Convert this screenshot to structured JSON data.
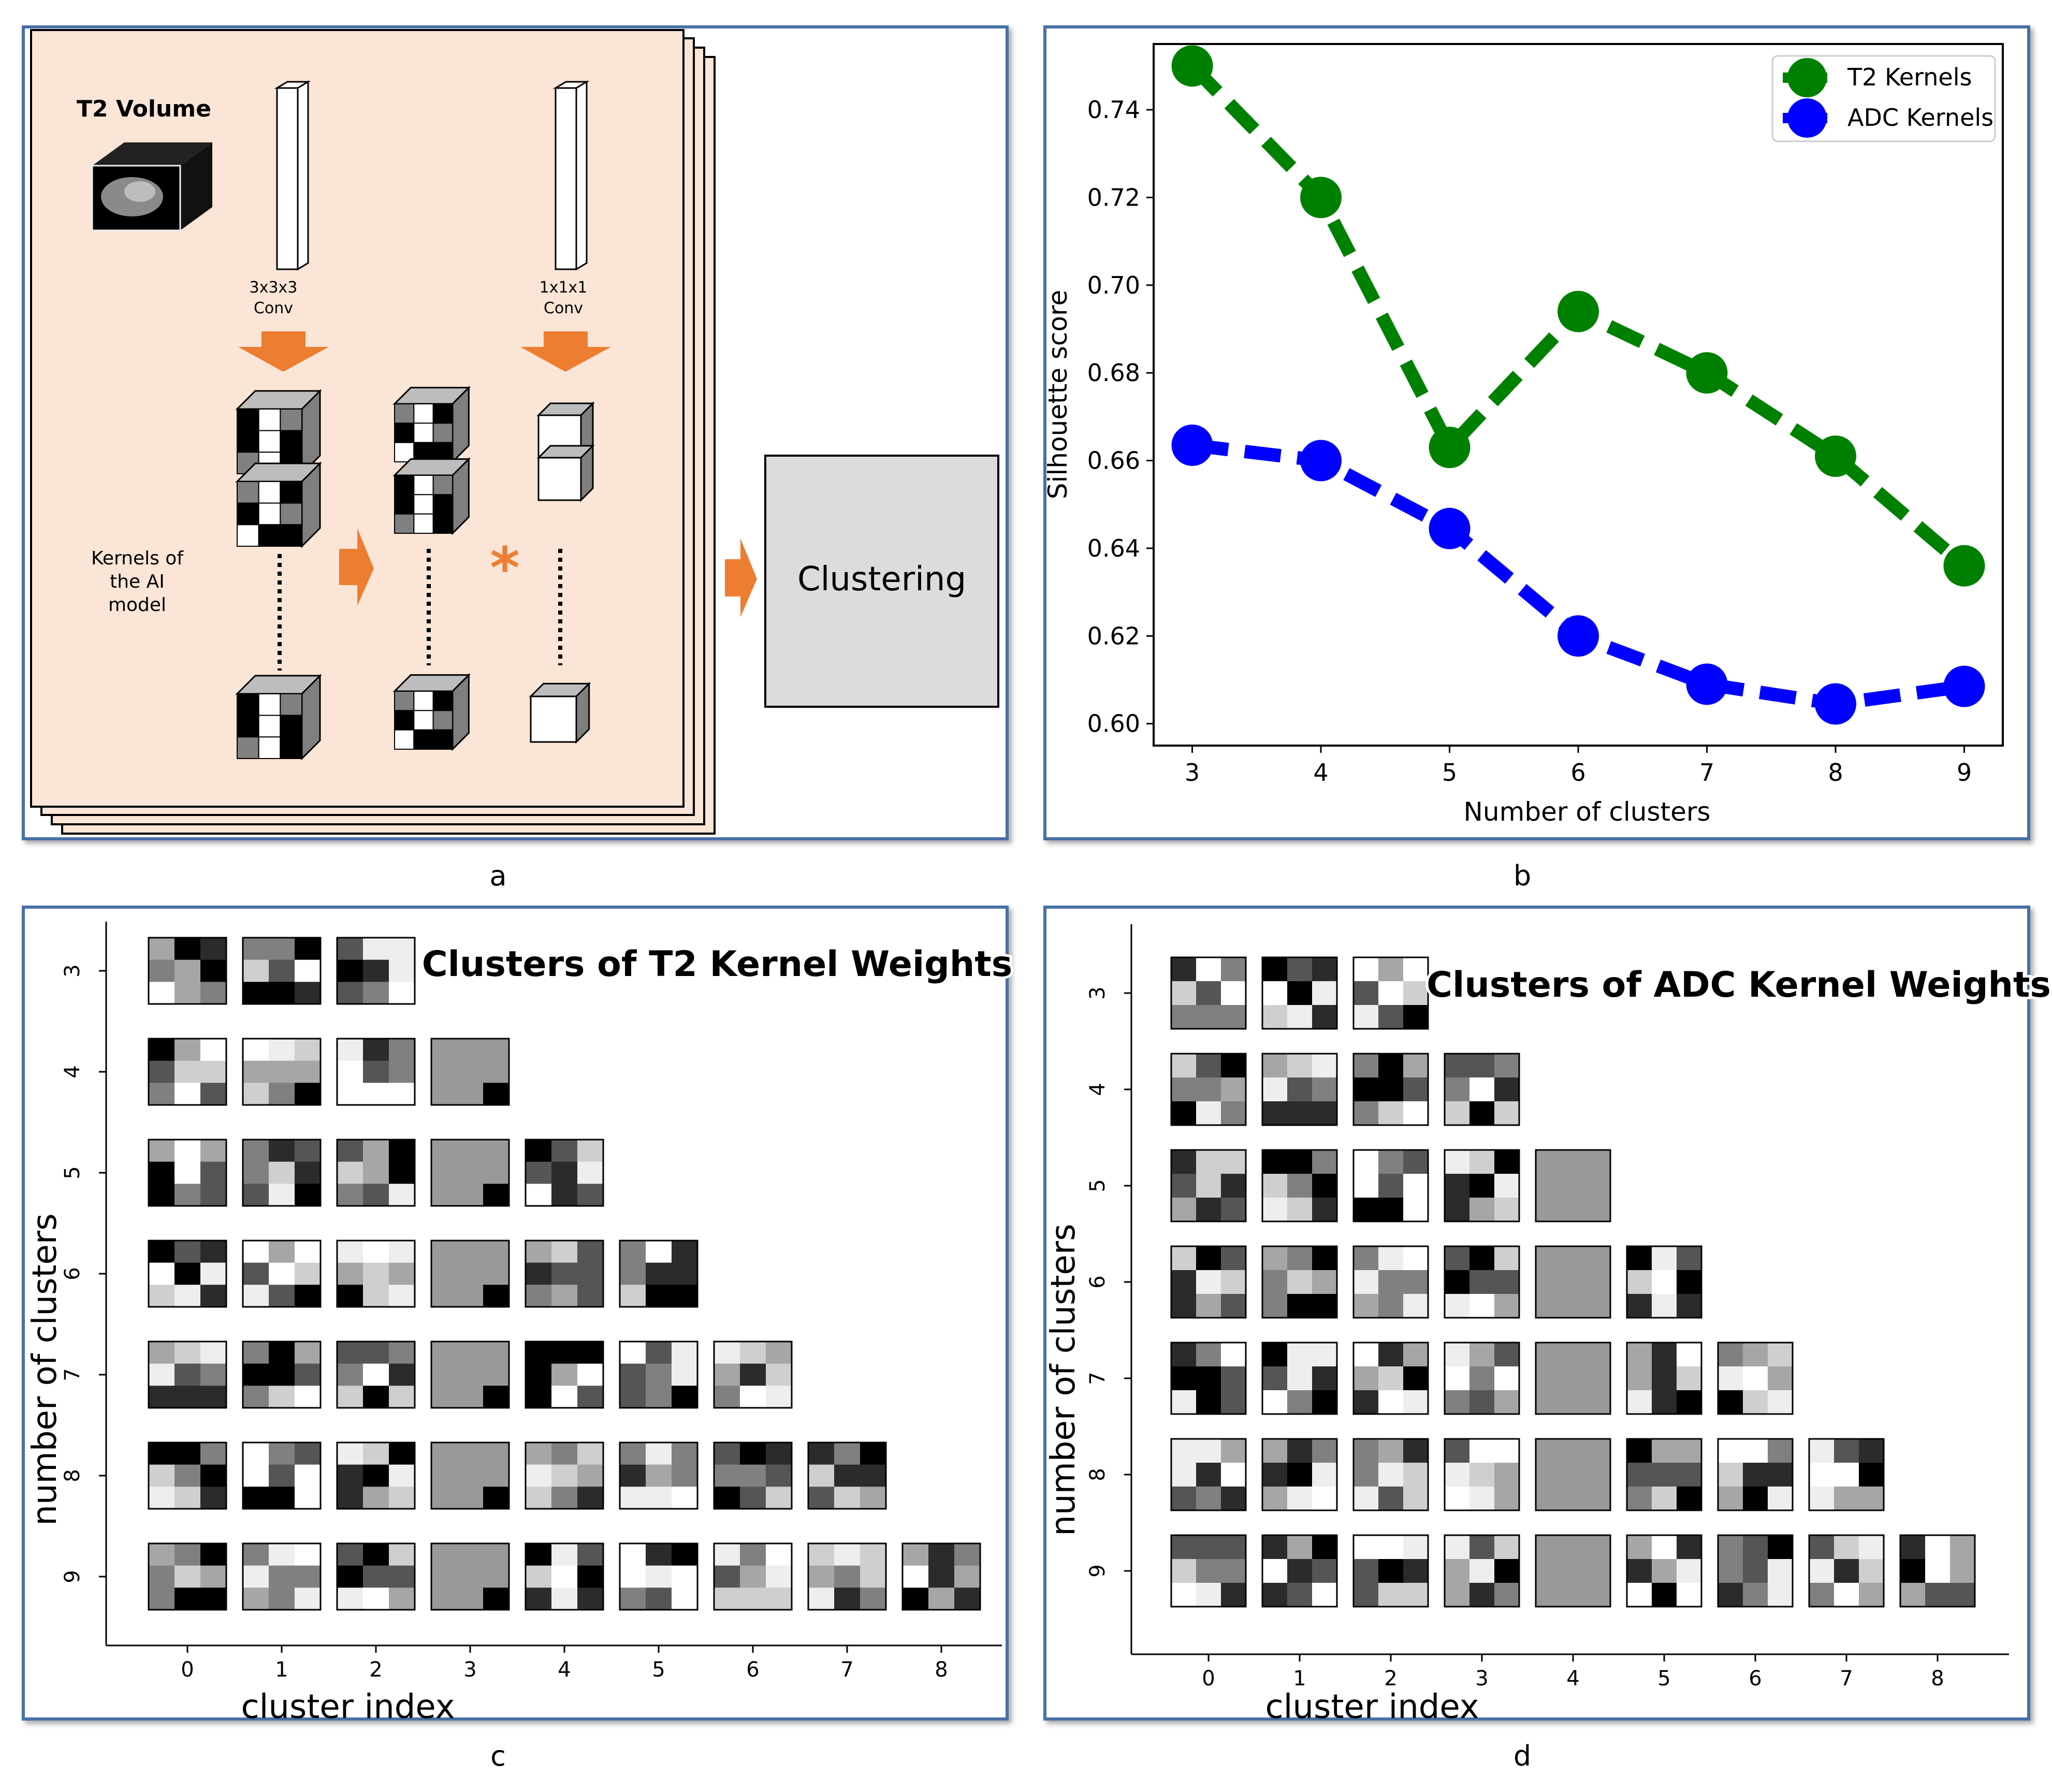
{
  "panels": {
    "a": {
      "caption": "a",
      "volume_label": "T2 Volume",
      "conv1_label": [
        "3x3x3",
        "Conv"
      ],
      "conv2_label": [
        "1x1x1",
        "Conv"
      ],
      "kernels_label": [
        "Kernels of",
        "the AI",
        "model"
      ],
      "operator": "*",
      "clustering_label": "Clustering",
      "colors": {
        "panel_fill": "#fbe5d6",
        "arrow": "#ed7d31",
        "box_fill": "#dcdcdc",
        "frame": "#4a6fa5"
      }
    },
    "b": {
      "caption": "b",
      "chart_data": {
        "type": "line",
        "x": [
          3,
          4,
          5,
          6,
          7,
          8,
          9
        ],
        "xlabel": "Number of clusters",
        "ylabel": "Silhouette score",
        "ylim": [
          0.595,
          0.755
        ],
        "yticks": [
          0.6,
          0.62,
          0.64,
          0.66,
          0.68,
          0.7,
          0.72,
          0.74
        ],
        "legend_position": "top-right",
        "series": [
          {
            "name": "T2 Kernels",
            "color": "#008000",
            "values": [
              0.75,
              0.72,
              0.663,
              0.694,
              0.68,
              0.661,
              0.636
            ]
          },
          {
            "name": "ADC Kernels",
            "color": "#0000ff",
            "values": [
              0.6635,
              0.66,
              0.6445,
              0.62,
              0.609,
              0.6045,
              0.6085
            ]
          }
        ]
      }
    },
    "c": {
      "caption": "c",
      "title": "Clusters of T2 Kernel Weights",
      "xlabel": "cluster index",
      "ylabel": "number of clusters",
      "xticks": [
        "0",
        "1",
        "2",
        "3",
        "4",
        "5",
        "6",
        "7",
        "8"
      ],
      "yticks": [
        "3",
        "4",
        "5",
        "6",
        "7",
        "8",
        "9"
      ]
    },
    "d": {
      "caption": "d",
      "title": "Clusters of ADC Kernel Weights",
      "xlabel": "cluster index",
      "ylabel": "number of clusters",
      "xticks": [
        "0",
        "1",
        "2",
        "3",
        "4",
        "5",
        "6",
        "7",
        "8"
      ],
      "yticks": [
        "3",
        "4",
        "5",
        "6",
        "7",
        "8",
        "9"
      ]
    }
  }
}
